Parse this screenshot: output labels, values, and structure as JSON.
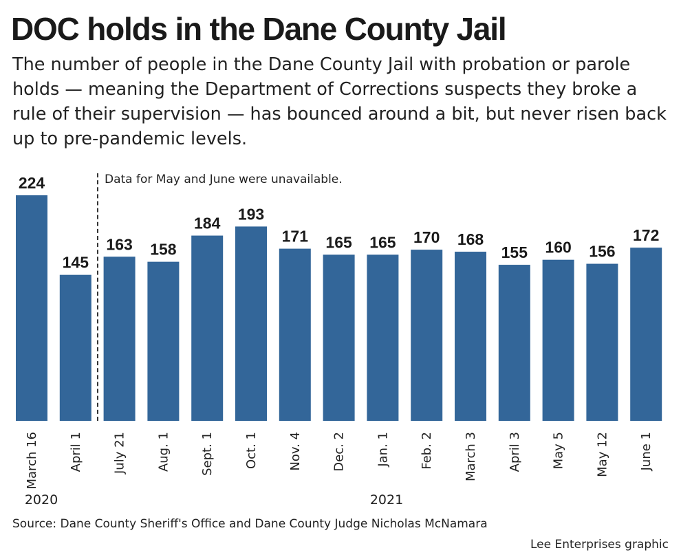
{
  "header": {
    "title": "DOC holds in the Dane County Jail",
    "subtitle": "The number of people in the Dane County Jail with probation or parole holds — meaning the Department of Corrections suspects they broke a rule of their supervision — has bounced around a bit, but never risen back up to pre-pandemic levels."
  },
  "annotation": "Data for May and June were unavailable.",
  "footer": {
    "source": "Source: Dane County Sheriff's Office and Dane County Judge Nicholas McNamara",
    "credit": "Lee Enterprises graphic"
  },
  "colors": {
    "bar": "#336699"
  },
  "chart_data": {
    "type": "bar",
    "title": "DOC holds in the Dane County Jail",
    "categories": [
      "March 16",
      "April 1",
      "July 21",
      "Aug. 1",
      "Sept. 1",
      "Oct. 1",
      "Nov. 4",
      "Dec. 2",
      "Jan. 1",
      "Feb. 2",
      "March 3",
      "April 3",
      "May 5",
      "May 12",
      "June 1"
    ],
    "values": [
      224,
      145,
      163,
      158,
      184,
      193,
      171,
      165,
      165,
      170,
      168,
      155,
      160,
      156,
      172
    ],
    "year_labels": [
      "2020",
      "2021"
    ],
    "ylim": [
      0,
      224
    ],
    "grid": false,
    "annotations": [
      "Data for May and June were unavailable."
    ]
  }
}
